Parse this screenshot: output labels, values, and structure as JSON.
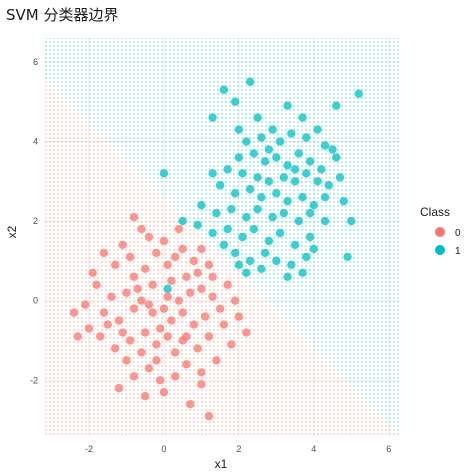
{
  "chart_data": {
    "type": "scatter",
    "title": "SVM 分类器边界",
    "xlabel": "x1",
    "ylabel": "x2",
    "xlim": [
      -3.2,
      6.3
    ],
    "ylim": [
      -3.4,
      6.6
    ],
    "x_ticks": [
      -2,
      0,
      2,
      4,
      6
    ],
    "y_ticks": [
      -2,
      0,
      2,
      4,
      6
    ],
    "grid": true,
    "legend": {
      "title": "Class",
      "position": "right",
      "entries": [
        {
          "label": "0",
          "color": "#F8766D"
        },
        {
          "label": "1",
          "color": "#00BFC4"
        }
      ]
    },
    "decision_boundary": {
      "description": "linear boundary; class 0 region below-left, class 1 region above-right",
      "points": [
        [
          -3.2,
          5.6
        ],
        [
          6.3,
          -3.4
        ]
      ]
    },
    "series": [
      {
        "name": "0",
        "color": "#F8766D",
        "points": [
          [
            -0.8,
            2.1
          ],
          [
            -0.6,
            1.8
          ],
          [
            -1.1,
            1.4
          ],
          [
            -0.9,
            1.1
          ],
          [
            -1.3,
            0.9
          ],
          [
            -0.5,
            0.8
          ],
          [
            -0.2,
            1.2
          ],
          [
            0.0,
            1.5
          ],
          [
            0.3,
            1.1
          ],
          [
            0.5,
            1.3
          ],
          [
            0.8,
            1.0
          ],
          [
            1.0,
            1.3
          ],
          [
            1.2,
            0.9
          ],
          [
            0.6,
            0.6
          ],
          [
            0.2,
            0.5
          ],
          [
            -0.3,
            0.4
          ],
          [
            -0.7,
            0.3
          ],
          [
            -1.0,
            0.2
          ],
          [
            -1.4,
            0.1
          ],
          [
            -1.8,
            0.4
          ],
          [
            -2.1,
            -0.1
          ],
          [
            -1.6,
            -0.3
          ],
          [
            -1.2,
            -0.5
          ],
          [
            -0.8,
            -0.2
          ],
          [
            -0.4,
            -0.1
          ],
          [
            0.1,
            0.1
          ],
          [
            0.4,
            0.0
          ],
          [
            0.7,
            0.2
          ],
          [
            1.0,
            0.3
          ],
          [
            1.3,
            0.1
          ],
          [
            1.5,
            -0.2
          ],
          [
            1.1,
            -0.4
          ],
          [
            0.8,
            -0.6
          ],
          [
            0.5,
            -0.3
          ],
          [
            0.2,
            -0.5
          ],
          [
            -0.1,
            -0.7
          ],
          [
            -0.5,
            -0.8
          ],
          [
            -0.9,
            -1.0
          ],
          [
            -1.3,
            -1.2
          ],
          [
            -1.7,
            -0.9
          ],
          [
            -2.0,
            -0.7
          ],
          [
            -2.4,
            -0.3
          ],
          [
            -1.0,
            -1.5
          ],
          [
            -0.6,
            -1.3
          ],
          [
            -0.2,
            -1.1
          ],
          [
            0.1,
            -0.9
          ],
          [
            0.5,
            -1.0
          ],
          [
            0.9,
            -1.2
          ],
          [
            1.2,
            -0.9
          ],
          [
            1.6,
            -0.6
          ],
          [
            1.8,
            -1.1
          ],
          [
            1.4,
            -1.5
          ],
          [
            1.0,
            -1.8
          ],
          [
            0.6,
            -1.6
          ],
          [
            0.3,
            -1.9
          ],
          [
            -0.1,
            -2.0
          ],
          [
            -0.4,
            -1.7
          ],
          [
            -0.8,
            -1.9
          ],
          [
            -1.2,
            -2.2
          ],
          [
            -0.5,
            -2.4
          ],
          [
            0.0,
            -2.3
          ],
          [
            0.7,
            -2.6
          ],
          [
            1.2,
            -2.9
          ],
          [
            1.0,
            -2.1
          ],
          [
            2.0,
            -0.4
          ],
          [
            1.7,
            0.4
          ],
          [
            1.9,
            0.0
          ],
          [
            0.9,
            0.7
          ],
          [
            -0.3,
            -0.3
          ],
          [
            0.0,
            -0.2
          ],
          [
            -0.6,
            0.0
          ],
          [
            -1.5,
            -0.6
          ],
          [
            -1.9,
            0.7
          ],
          [
            -0.4,
            1.6
          ],
          [
            0.4,
            1.8
          ],
          [
            -0.2,
            -1.5
          ],
          [
            0.3,
            -1.3
          ],
          [
            -1.1,
            -0.8
          ],
          [
            0.6,
            -0.9
          ],
          [
            -0.8,
            0.6
          ],
          [
            1.3,
            0.6
          ],
          [
            -2.3,
            -0.9
          ],
          [
            2.2,
            -0.8
          ],
          [
            -1.6,
            1.2
          ],
          [
            0.1,
            0.9
          ]
        ]
      },
      {
        "name": "1",
        "color": "#00BFC4",
        "points": [
          [
            1.6,
            5.3
          ],
          [
            1.9,
            5.0
          ],
          [
            2.3,
            5.5
          ],
          [
            1.3,
            4.6
          ],
          [
            2.0,
            4.3
          ],
          [
            2.5,
            4.6
          ],
          [
            3.3,
            4.9
          ],
          [
            3.7,
            4.6
          ],
          [
            4.6,
            4.9
          ],
          [
            5.2,
            5.2
          ],
          [
            2.2,
            4.0
          ],
          [
            2.6,
            4.1
          ],
          [
            2.9,
            4.3
          ],
          [
            3.1,
            4.0
          ],
          [
            3.4,
            4.2
          ],
          [
            3.8,
            4.1
          ],
          [
            4.1,
            4.3
          ],
          [
            4.3,
            3.9
          ],
          [
            2.0,
            3.6
          ],
          [
            2.4,
            3.7
          ],
          [
            2.7,
            3.5
          ],
          [
            3.0,
            3.6
          ],
          [
            3.3,
            3.4
          ],
          [
            3.6,
            3.7
          ],
          [
            3.9,
            3.5
          ],
          [
            4.2,
            3.3
          ],
          [
            4.6,
            3.6
          ],
          [
            1.3,
            3.2
          ],
          [
            1.7,
            3.3
          ],
          [
            2.1,
            3.2
          ],
          [
            2.5,
            3.1
          ],
          [
            2.8,
            3.0
          ],
          [
            3.2,
            3.1
          ],
          [
            3.5,
            3.0
          ],
          [
            3.8,
            3.2
          ],
          [
            4.1,
            3.0
          ],
          [
            4.4,
            2.9
          ],
          [
            4.7,
            3.1
          ],
          [
            0.0,
            3.2
          ],
          [
            1.5,
            2.9
          ],
          [
            1.9,
            2.7
          ],
          [
            2.3,
            2.8
          ],
          [
            2.6,
            2.6
          ],
          [
            3.0,
            2.7
          ],
          [
            3.3,
            2.5
          ],
          [
            3.7,
            2.6
          ],
          [
            4.0,
            2.4
          ],
          [
            4.3,
            2.6
          ],
          [
            4.8,
            2.5
          ],
          [
            1.0,
            2.4
          ],
          [
            1.4,
            2.2
          ],
          [
            1.8,
            2.3
          ],
          [
            2.2,
            2.1
          ],
          [
            2.5,
            2.3
          ],
          [
            2.9,
            2.1
          ],
          [
            3.2,
            2.2
          ],
          [
            3.6,
            2.0
          ],
          [
            3.9,
            2.2
          ],
          [
            4.3,
            2.0
          ],
          [
            5.0,
            2.0
          ],
          [
            0.5,
            2.0
          ],
          [
            0.9,
            1.9
          ],
          [
            1.3,
            1.7
          ],
          [
            1.7,
            1.8
          ],
          [
            2.1,
            1.6
          ],
          [
            2.4,
            1.8
          ],
          [
            2.8,
            1.5
          ],
          [
            3.1,
            1.7
          ],
          [
            3.5,
            1.4
          ],
          [
            3.9,
            1.6
          ],
          [
            1.9,
            1.2
          ],
          [
            2.3,
            1.0
          ],
          [
            2.7,
            1.2
          ],
          [
            3.0,
            1.0
          ],
          [
            3.4,
            0.9
          ],
          [
            3.8,
            1.1
          ],
          [
            2.2,
            0.7
          ],
          [
            2.6,
            0.8
          ],
          [
            3.3,
            0.6
          ],
          [
            3.7,
            0.7
          ],
          [
            2.0,
            0.9
          ],
          [
            4.0,
            1.3
          ],
          [
            4.9,
            1.1
          ],
          [
            0.1,
            0.3
          ],
          [
            4.5,
            3.8
          ],
          [
            3.5,
            3.3
          ],
          [
            2.8,
            3.8
          ],
          [
            1.6,
            1.4
          ]
        ]
      }
    ]
  }
}
